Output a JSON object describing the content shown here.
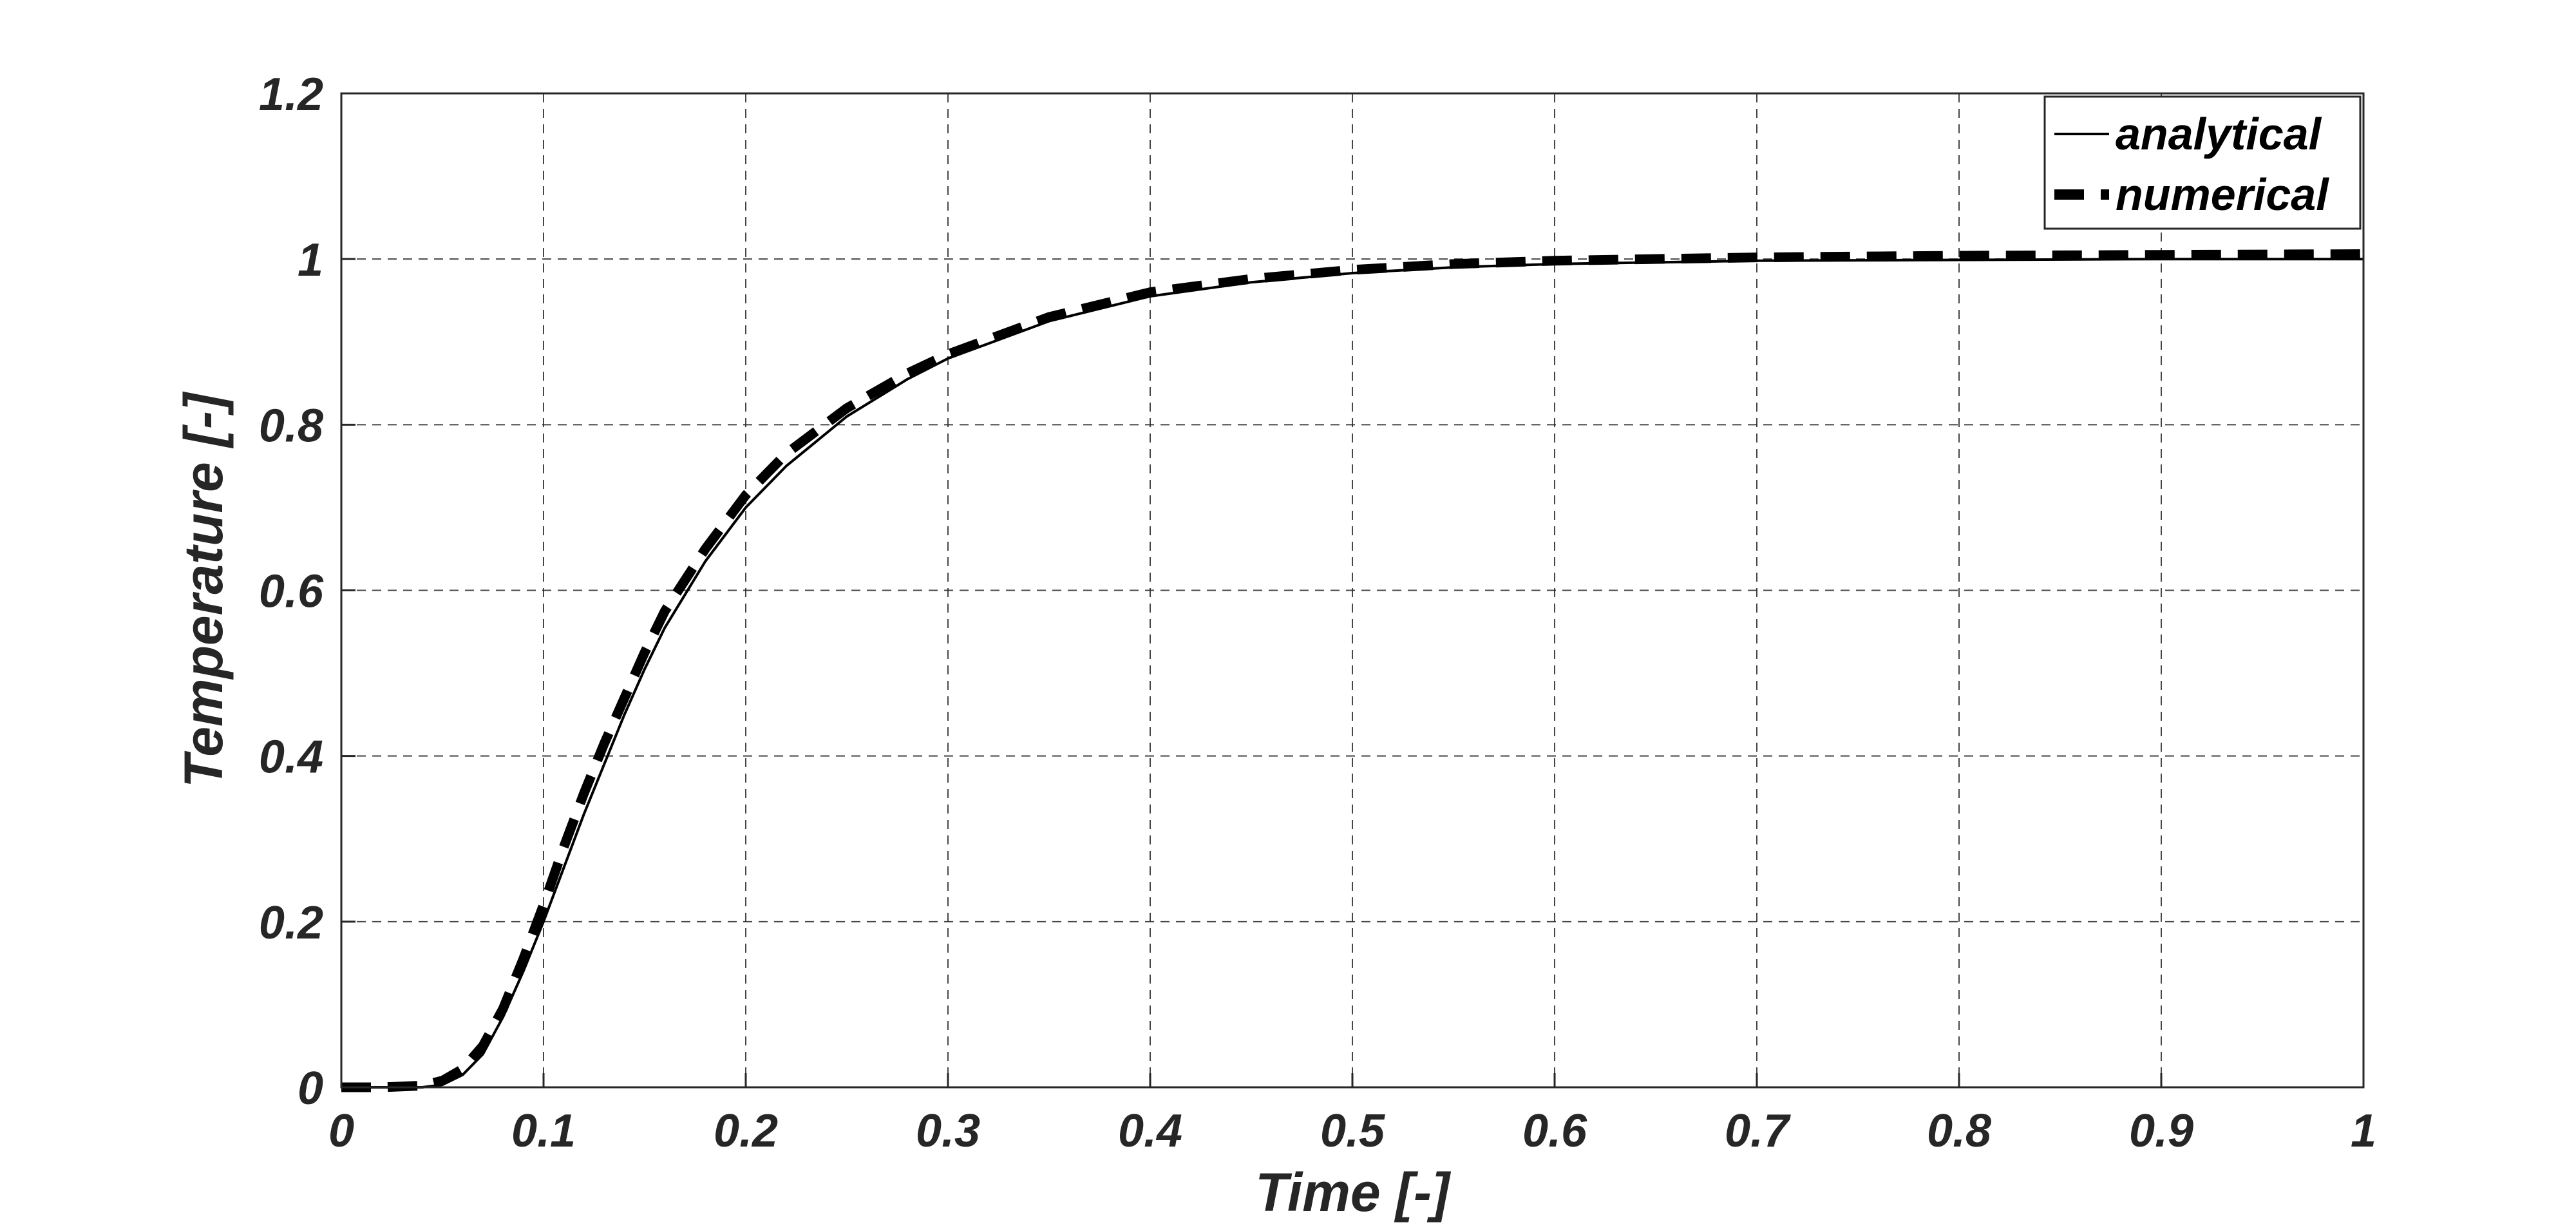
{
  "chart_data": {
    "type": "line",
    "title": "",
    "xlabel": "Time [-]",
    "ylabel": "Temperature [-]",
    "xlim": [
      0,
      1
    ],
    "ylim": [
      0,
      1.2
    ],
    "xticks": [
      0,
      0.1,
      0.2,
      0.3,
      0.4,
      0.5,
      0.6,
      0.7,
      0.8,
      0.9,
      1
    ],
    "yticks": [
      0,
      0.2,
      0.4,
      0.6,
      0.8,
      1,
      1.2
    ],
    "xtick_labels": [
      "0",
      "0.1",
      "0.2",
      "0.3",
      "0.4",
      "0.5",
      "0.6",
      "0.7",
      "0.8",
      "0.9",
      "1"
    ],
    "ytick_labels": [
      "0",
      "0.2",
      "0.4",
      "0.6",
      "0.8",
      "1",
      "1.2"
    ],
    "grid": true,
    "legend_position": "top-right",
    "series": [
      {
        "name": "analytical",
        "style": "solid",
        "color": "#000000",
        "x": [
          0,
          0.02,
          0.04,
          0.05,
          0.06,
          0.07,
          0.08,
          0.09,
          0.1,
          0.11,
          0.12,
          0.13,
          0.14,
          0.15,
          0.16,
          0.18,
          0.2,
          0.22,
          0.25,
          0.28,
          0.3,
          0.35,
          0.4,
          0.45,
          0.5,
          0.55,
          0.6,
          0.7,
          0.8,
          0.9,
          1.0
        ],
        "y": [
          0,
          0,
          0.0,
          0.003,
          0.015,
          0.04,
          0.085,
          0.14,
          0.2,
          0.265,
          0.33,
          0.39,
          0.45,
          0.505,
          0.555,
          0.635,
          0.7,
          0.75,
          0.81,
          0.855,
          0.88,
          0.925,
          0.955,
          0.972,
          0.983,
          0.99,
          0.994,
          0.998,
          0.999,
          1.0,
          1.0
        ]
      },
      {
        "name": "numerical",
        "style": "dashed",
        "color": "#000000",
        "x": [
          0,
          0.02,
          0.04,
          0.05,
          0.06,
          0.07,
          0.08,
          0.09,
          0.1,
          0.11,
          0.12,
          0.13,
          0.14,
          0.15,
          0.16,
          0.18,
          0.2,
          0.22,
          0.25,
          0.28,
          0.3,
          0.35,
          0.4,
          0.45,
          0.5,
          0.55,
          0.6,
          0.7,
          0.8,
          0.9,
          1.0
        ],
        "y": [
          0,
          0,
          0.002,
          0.008,
          0.022,
          0.05,
          0.095,
          0.155,
          0.22,
          0.29,
          0.355,
          0.415,
          0.47,
          0.525,
          0.575,
          0.65,
          0.715,
          0.765,
          0.82,
          0.862,
          0.885,
          0.93,
          0.96,
          0.976,
          0.987,
          0.994,
          0.998,
          1.002,
          1.004,
          1.005,
          1.006
        ]
      }
    ]
  }
}
